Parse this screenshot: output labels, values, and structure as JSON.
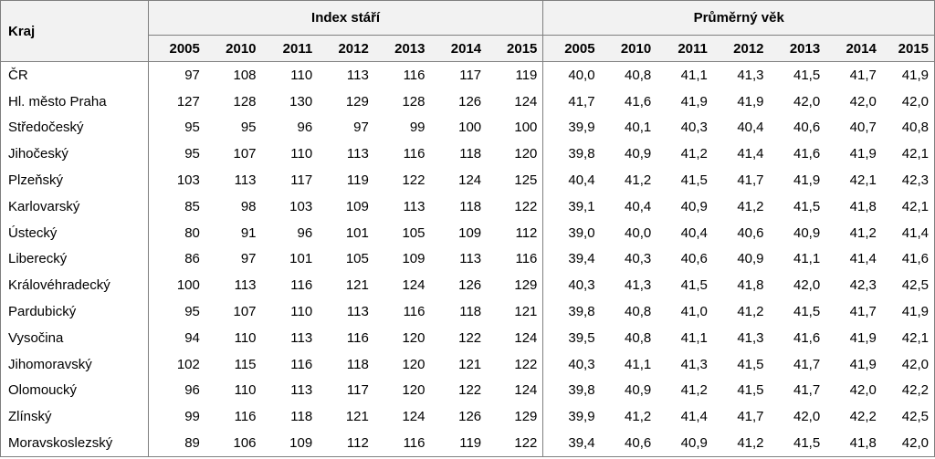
{
  "table": {
    "region_header": "Kraj",
    "group_headers": [
      "Index stáří",
      "Průměrný věk"
    ],
    "years": [
      "2005",
      "2010",
      "2011",
      "2012",
      "2013",
      "2014",
      "2015"
    ],
    "rows": [
      {
        "name": "ČR",
        "index": [
          "97",
          "108",
          "110",
          "113",
          "116",
          "117",
          "119"
        ],
        "age": [
          "40,0",
          "40,8",
          "41,1",
          "41,3",
          "41,5",
          "41,7",
          "41,9"
        ]
      },
      {
        "name": "Hl. město Praha",
        "index": [
          "127",
          "128",
          "130",
          "129",
          "128",
          "126",
          "124"
        ],
        "age": [
          "41,7",
          "41,6",
          "41,9",
          "41,9",
          "42,0",
          "42,0",
          "42,0"
        ]
      },
      {
        "name": "Středočeský",
        "index": [
          "95",
          "95",
          "96",
          "97",
          "99",
          "100",
          "100"
        ],
        "age": [
          "39,9",
          "40,1",
          "40,3",
          "40,4",
          "40,6",
          "40,7",
          "40,8"
        ]
      },
      {
        "name": "Jihočeský",
        "index": [
          "95",
          "107",
          "110",
          "113",
          "116",
          "118",
          "120"
        ],
        "age": [
          "39,8",
          "40,9",
          "41,2",
          "41,4",
          "41,6",
          "41,9",
          "42,1"
        ]
      },
      {
        "name": "Plzeňský",
        "index": [
          "103",
          "113",
          "117",
          "119",
          "122",
          "124",
          "125"
        ],
        "age": [
          "40,4",
          "41,2",
          "41,5",
          "41,7",
          "41,9",
          "42,1",
          "42,3"
        ]
      },
      {
        "name": "Karlovarský",
        "index": [
          "85",
          "98",
          "103",
          "109",
          "113",
          "118",
          "122"
        ],
        "age": [
          "39,1",
          "40,4",
          "40,9",
          "41,2",
          "41,5",
          "41,8",
          "42,1"
        ]
      },
      {
        "name": "Ústecký",
        "index": [
          "80",
          "91",
          "96",
          "101",
          "105",
          "109",
          "112"
        ],
        "age": [
          "39,0",
          "40,0",
          "40,4",
          "40,6",
          "40,9",
          "41,2",
          "41,4"
        ]
      },
      {
        "name": "Liberecký",
        "index": [
          "86",
          "97",
          "101",
          "105",
          "109",
          "113",
          "116"
        ],
        "age": [
          "39,4",
          "40,3",
          "40,6",
          "40,9",
          "41,1",
          "41,4",
          "41,6"
        ]
      },
      {
        "name": "Královéhradecký",
        "index": [
          "100",
          "113",
          "116",
          "121",
          "124",
          "126",
          "129"
        ],
        "age": [
          "40,3",
          "41,3",
          "41,5",
          "41,8",
          "42,0",
          "42,3",
          "42,5"
        ]
      },
      {
        "name": "Pardubický",
        "index": [
          "95",
          "107",
          "110",
          "113",
          "116",
          "118",
          "121"
        ],
        "age": [
          "39,8",
          "40,8",
          "41,0",
          "41,2",
          "41,5",
          "41,7",
          "41,9"
        ]
      },
      {
        "name": "Vysočina",
        "index": [
          "94",
          "110",
          "113",
          "116",
          "120",
          "122",
          "124"
        ],
        "age": [
          "39,5",
          "40,8",
          "41,1",
          "41,3",
          "41,6",
          "41,9",
          "42,1"
        ]
      },
      {
        "name": "Jihomoravský",
        "index": [
          "102",
          "115",
          "116",
          "118",
          "120",
          "121",
          "122"
        ],
        "age": [
          "40,3",
          "41,1",
          "41,3",
          "41,5",
          "41,7",
          "41,9",
          "42,0"
        ]
      },
      {
        "name": "Olomoucký",
        "index": [
          "96",
          "110",
          "113",
          "117",
          "120",
          "122",
          "124"
        ],
        "age": [
          "39,8",
          "40,9",
          "41,2",
          "41,5",
          "41,7",
          "42,0",
          "42,2"
        ]
      },
      {
        "name": "Zlínský",
        "index": [
          "99",
          "116",
          "118",
          "121",
          "124",
          "126",
          "129"
        ],
        "age": [
          "39,9",
          "41,2",
          "41,4",
          "41,7",
          "42,0",
          "42,2",
          "42,5"
        ]
      },
      {
        "name": "Moravskoslezský",
        "index": [
          "89",
          "106",
          "109",
          "112",
          "116",
          "119",
          "122"
        ],
        "age": [
          "39,4",
          "40,6",
          "40,9",
          "41,2",
          "41,5",
          "41,8",
          "42,0"
        ]
      }
    ]
  }
}
